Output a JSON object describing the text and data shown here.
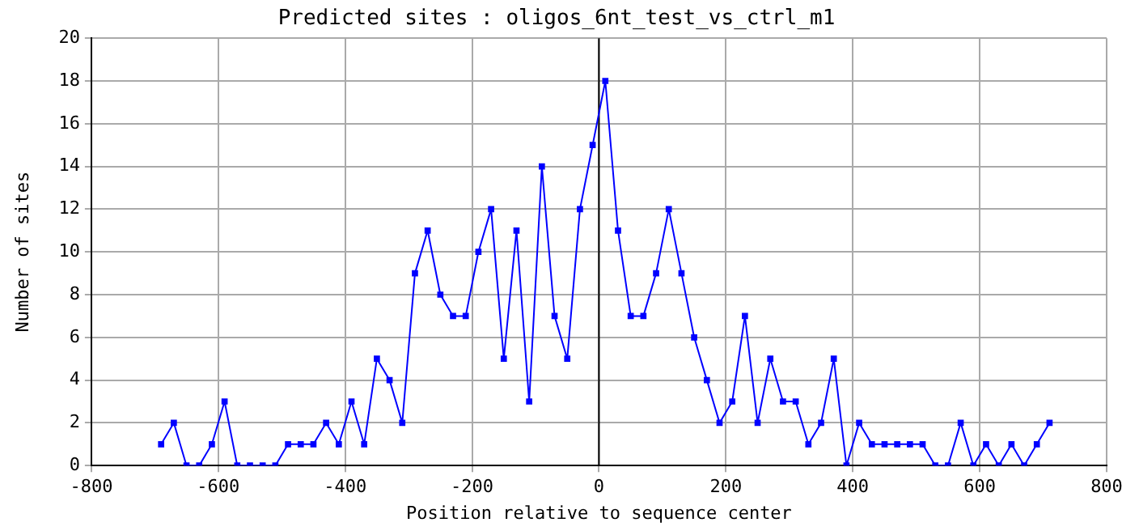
{
  "chart_data": {
    "type": "line",
    "title": "Predicted sites : oligos_6nt_test_vs_ctrl_m1",
    "xlabel": "Position relative to sequence center",
    "ylabel": "Number of sites",
    "x": [
      -690,
      -670,
      -650,
      -630,
      -610,
      -590,
      -570,
      -550,
      -530,
      -510,
      -490,
      -470,
      -450,
      -430,
      -410,
      -390,
      -370,
      -350,
      -330,
      -310,
      -290,
      -270,
      -250,
      -230,
      -210,
      -190,
      -170,
      -150,
      -130,
      -110,
      -90,
      -70,
      -50,
      -30,
      -10,
      10,
      30,
      50,
      70,
      90,
      110,
      130,
      150,
      170,
      190,
      210,
      230,
      250,
      270,
      290,
      310,
      330,
      350,
      370,
      390,
      410,
      430,
      450,
      470,
      490,
      510,
      530,
      550,
      570,
      590,
      610,
      630,
      650,
      670,
      690,
      710
    ],
    "series": [
      {
        "color": "#0000ff",
        "values": [
          1,
          2,
          0,
          0,
          1,
          3,
          0,
          0,
          0,
          0,
          1,
          1,
          1,
          2,
          1,
          3,
          1,
          5,
          4,
          2,
          9,
          11,
          8,
          7,
          7,
          10,
          12,
          5,
          11,
          3,
          14,
          7,
          5,
          12,
          15,
          18,
          11,
          7,
          7,
          9,
          12,
          9,
          6,
          4,
          2,
          3,
          7,
          2,
          5,
          3,
          3,
          1,
          2,
          5,
          0,
          2,
          1,
          1,
          1,
          1,
          1,
          0,
          0,
          2,
          0,
          1,
          0,
          1,
          0,
          1,
          2
        ]
      }
    ],
    "xlim": [
      -800,
      800
    ],
    "xticks": [
      -800,
      -600,
      -400,
      -200,
      0,
      200,
      400,
      600,
      800
    ],
    "ylim": [
      0,
      20
    ],
    "yticks": [
      0,
      2,
      4,
      6,
      8,
      10,
      12,
      14,
      16,
      18,
      20
    ],
    "grid": true,
    "legend": false,
    "marker": "square",
    "line_style": "solid",
    "ref_lines": [
      {
        "axis": "x",
        "value": 0,
        "color": "#000000"
      }
    ]
  }
}
